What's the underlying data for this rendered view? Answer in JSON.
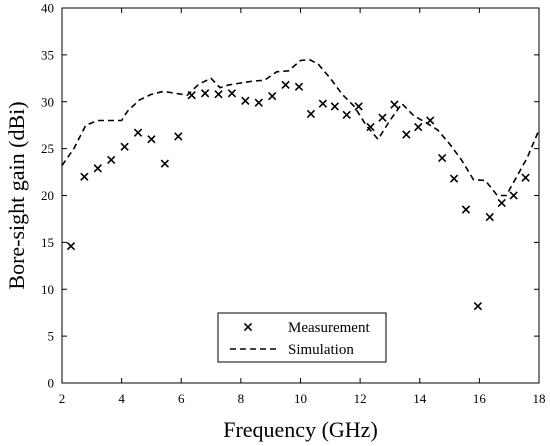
{
  "chart_data": {
    "type": "scatter",
    "xlabel": "Frequency (GHz)",
    "ylabel": "Bore-sight gain (dBi)",
    "xlim": [
      2,
      18
    ],
    "ylim": [
      0,
      40
    ],
    "x_ticks": [
      2,
      4,
      6,
      8,
      10,
      12,
      14,
      16,
      18
    ],
    "y_ticks": [
      0,
      5,
      10,
      15,
      20,
      25,
      30,
      35,
      40
    ],
    "grid": false,
    "legend_position": "bottom-center",
    "series": [
      {
        "name": "Measurement",
        "marker": "x",
        "color": "#000000",
        "x": [
          2.3,
          2.75,
          3.2,
          3.65,
          4.1,
          4.55,
          5.0,
          5.45,
          5.9,
          6.35,
          6.8,
          7.25,
          7.7,
          8.15,
          8.6,
          9.05,
          9.5,
          9.95,
          10.35,
          10.75,
          11.15,
          11.55,
          11.95,
          12.35,
          12.75,
          13.15,
          13.55,
          13.95,
          14.35,
          14.75,
          15.15,
          15.55,
          15.95,
          16.35,
          16.75,
          17.15,
          17.55
        ],
        "y": [
          14.6,
          22.0,
          22.9,
          23.8,
          25.2,
          26.7,
          26.0,
          23.4,
          26.3,
          30.7,
          30.9,
          30.8,
          30.9,
          30.1,
          29.9,
          30.6,
          31.8,
          31.6,
          28.7,
          29.8,
          29.5,
          28.6,
          29.5,
          27.3,
          28.3,
          29.7,
          26.5,
          27.3,
          28.0,
          24.0,
          21.8,
          18.5,
          8.2,
          17.7,
          19.2,
          20.0,
          21.9
        ]
      },
      {
        "name": "Simulation",
        "line_style": "dashed",
        "color": "#000000",
        "x": [
          2.0,
          2.4,
          2.8,
          3.2,
          3.6,
          4.0,
          4.2,
          4.6,
          5.0,
          5.4,
          5.8,
          6.2,
          6.6,
          7.0,
          7.3,
          7.6,
          8.0,
          8.4,
          8.8,
          9.2,
          9.6,
          10.0,
          10.3,
          10.6,
          11.0,
          11.4,
          11.8,
          12.2,
          12.6,
          13.0,
          13.4,
          13.8,
          14.2,
          14.6,
          15.0,
          15.4,
          15.8,
          16.2,
          16.6,
          16.9,
          17.2,
          17.6,
          18.0
        ],
        "y": [
          23.2,
          25.0,
          27.5,
          28.0,
          28.0,
          28.0,
          29.0,
          30.2,
          30.8,
          31.1,
          30.9,
          30.7,
          31.9,
          32.5,
          31.5,
          31.8,
          32.0,
          32.2,
          32.3,
          33.2,
          33.3,
          34.4,
          34.5,
          34.0,
          32.5,
          30.8,
          29.5,
          27.5,
          26.0,
          28.0,
          29.8,
          28.5,
          27.8,
          27.0,
          25.5,
          23.8,
          21.7,
          21.6,
          20.0,
          20.0,
          21.7,
          24.0,
          27.0
        ]
      }
    ]
  }
}
